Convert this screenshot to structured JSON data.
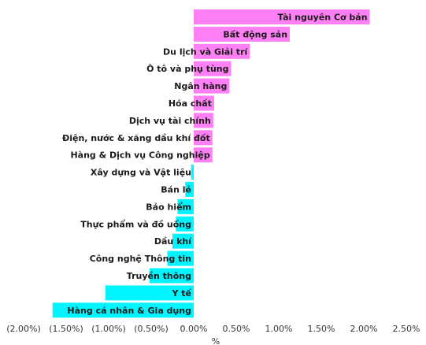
{
  "chart_data": {
    "type": "bar",
    "orientation": "horizontal",
    "categories": [
      "Tài nguyên Cơ bản",
      "Bất động sản",
      "Du lịch và Giải trí",
      "Ô tô và phụ tùng",
      "Ngân hàng",
      "Hóa chất",
      "Dịch vụ tài chính",
      "Điện, nước & xăng dầu khí đốt",
      "Hàng & Dịch vụ Công nghiệp",
      "Xây dựng và Vật liệu",
      "Bán lẻ",
      "Bảo hiểm",
      "Thực phẩm và đồ uống",
      "Dầu khí",
      "Công nghệ Thông tin",
      "Truyền thông",
      "Y tế",
      "Hàng cá nhân & Gia dụng"
    ],
    "values": [
      2.07,
      1.13,
      0.66,
      0.44,
      0.42,
      0.24,
      0.23,
      0.22,
      0.22,
      -0.03,
      -0.1,
      -0.19,
      -0.21,
      -0.25,
      -0.31,
      -0.52,
      -1.04,
      -1.66
    ],
    "xlim": [
      -2.0,
      2.5
    ],
    "xticks": [
      "(2.00%)",
      "(1.50%)",
      "(1.00%)",
      "(0.50%)",
      "0.00%",
      "0.50%",
      "1.00%",
      "1.50%",
      "2.00%",
      "2.50%"
    ],
    "xlabel": "%",
    "colors": {
      "positive": "#ff7ff5",
      "negative": "#00f5ff"
    },
    "grid": false
  }
}
